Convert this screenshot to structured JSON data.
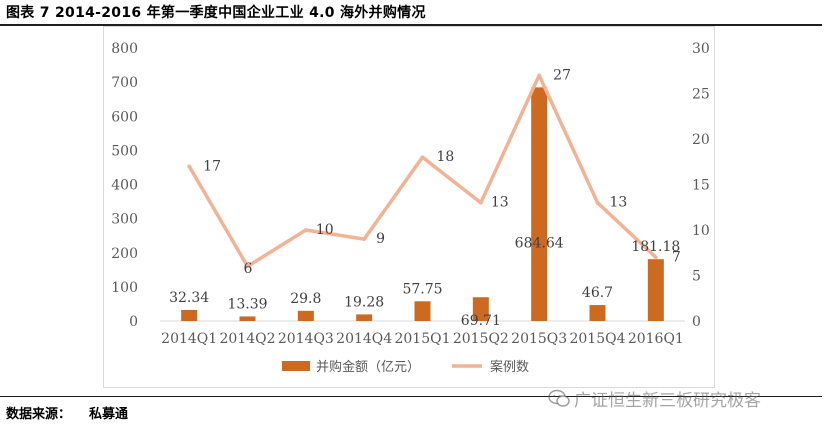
{
  "figure": {
    "title": "图表 7 2014-2016 年第一季度中国企业工业 4.0 海外并购情况",
    "source_label": "数据来源：",
    "source_value": "私募通",
    "watermark": "广证恒生新三板研究极客"
  },
  "chart_data": {
    "type": "bar+line",
    "categories": [
      "2014Q1",
      "2014Q2",
      "2014Q3",
      "2014Q4",
      "2015Q1",
      "2015Q2",
      "2015Q3",
      "2015Q4",
      "2016Q1"
    ],
    "series": [
      {
        "name": "并购金额（亿元）",
        "type": "bar",
        "axis": "left",
        "values": [
          32.34,
          13.39,
          29.8,
          19.28,
          57.75,
          69.71,
          684.64,
          46.7,
          181.18
        ],
        "labels": [
          "32.34",
          "13.39",
          "29.8",
          "19.28",
          "57.75",
          "69.71",
          "684.64",
          "46.7",
          "181.18"
        ],
        "color": "#cc6a22"
      },
      {
        "name": "案例数",
        "type": "line",
        "axis": "right",
        "values": [
          17,
          6,
          10,
          9,
          18,
          13,
          27,
          13,
          7
        ],
        "labels": [
          "17",
          "6",
          "10",
          "9",
          "18",
          "13",
          "27",
          "13",
          "7"
        ],
        "color": "#f4b294"
      }
    ],
    "y_left": {
      "min": 0,
      "max": 800,
      "ticks": [
        0,
        100,
        200,
        300,
        400,
        500,
        600,
        700,
        800
      ]
    },
    "y_right": {
      "min": 0,
      "max": 30,
      "ticks": [
        0,
        5,
        10,
        15,
        20,
        25,
        30
      ]
    },
    "grid": false,
    "legend_position": "bottom"
  }
}
